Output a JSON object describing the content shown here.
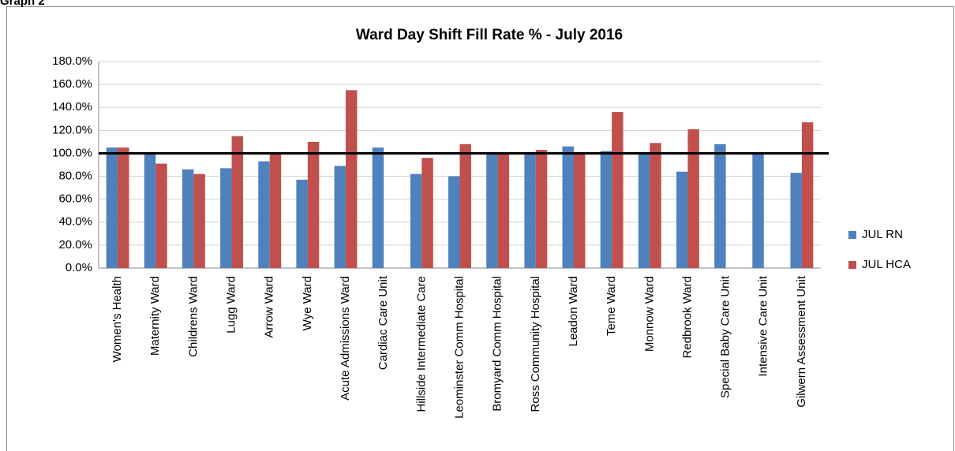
{
  "header": "Graph 2",
  "chart_data": {
    "type": "bar",
    "title": "Ward Day Shift Fill Rate % - July 2016",
    "categories": [
      "Women's Health",
      "Maternity Ward",
      "Childrens Ward",
      "Lugg Ward",
      "Arrow Ward",
      "Wye Ward",
      "Acute Admissions Ward",
      "Cardiac Care Unit",
      "Hillside Intermediate Care",
      "Leominster Comm Hospital",
      "Bromyard Comm Hospital",
      "Ross Community Hospital",
      "Leadon Ward",
      "Teme Ward",
      "Monnow Ward",
      "Redbrook Ward",
      "Special Baby Care Unit",
      "Intensive Care Unit",
      "Gilwern Assessment Unit"
    ],
    "series": [
      {
        "name": "JUL RN",
        "color": "#4f81bd",
        "values": [
          105,
          100,
          86,
          87,
          93,
          77,
          89,
          105,
          82,
          80,
          100,
          100,
          106,
          102,
          100,
          84,
          108,
          100,
          83
        ]
      },
      {
        "name": "JUL HCA",
        "color": "#c0504d",
        "values": [
          105,
          91,
          82,
          115,
          100,
          110,
          155,
          null,
          96,
          108,
          100,
          103,
          100,
          136,
          109,
          121,
          null,
          null,
          127
        ]
      }
    ],
    "ylim": [
      0,
      180
    ],
    "yticks": [
      {
        "value": 0,
        "label": "0.0%"
      },
      {
        "value": 20,
        "label": "20.0%"
      },
      {
        "value": 40,
        "label": "40.0%"
      },
      {
        "value": 60,
        "label": "60.0%"
      },
      {
        "value": 80,
        "label": "80.0%"
      },
      {
        "value": 100,
        "label": "100.0%"
      },
      {
        "value": 120,
        "label": "120.0%"
      },
      {
        "value": 140,
        "label": "140.0%"
      },
      {
        "value": 160,
        "label": "160.0%"
      },
      {
        "value": 180,
        "label": "180.0%"
      }
    ],
    "grid": true,
    "reference_line": 100,
    "legend": "right"
  }
}
